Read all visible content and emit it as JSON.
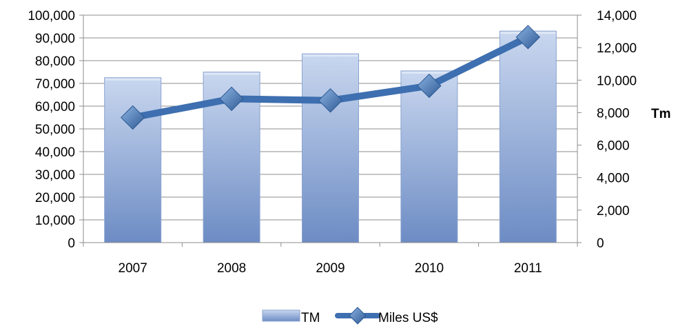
{
  "chart_data": {
    "type": "bar",
    "categories": [
      "2007",
      "2008",
      "2009",
      "2010",
      "2011"
    ],
    "series": [
      {
        "name": "TM",
        "type": "bar",
        "axis": "left",
        "values": [
          72500,
          75000,
          83000,
          75500,
          93000
        ]
      },
      {
        "name": "Miles US$",
        "type": "line",
        "axis": "right",
        "values": [
          7700,
          8850,
          8750,
          9650,
          12650
        ]
      }
    ],
    "y_left": {
      "min": 0,
      "max": 100000,
      "step": 10000,
      "ticks": [
        "0",
        "10,000",
        "20,000",
        "30,000",
        "40,000",
        "50,000",
        "60,000",
        "70,000",
        "80,000",
        "90,000",
        "100,000"
      ]
    },
    "y_right": {
      "label": "Tm",
      "min": 0,
      "max": 14000,
      "step": 2000,
      "ticks": [
        "0",
        "2,000",
        "4,000",
        "6,000",
        "8,000",
        "10,000",
        "12,000",
        "14,000"
      ]
    },
    "grid": true,
    "legend": {
      "placement": "bottom",
      "entries": [
        "TM",
        "Miles US$"
      ]
    },
    "colors": {
      "bar_light": "#c9d7ef",
      "bar_dark": "#6d8cc4",
      "line": "#3e6fb0",
      "marker_light": "#7ea6d9",
      "marker_dark": "#2d5a94"
    }
  }
}
